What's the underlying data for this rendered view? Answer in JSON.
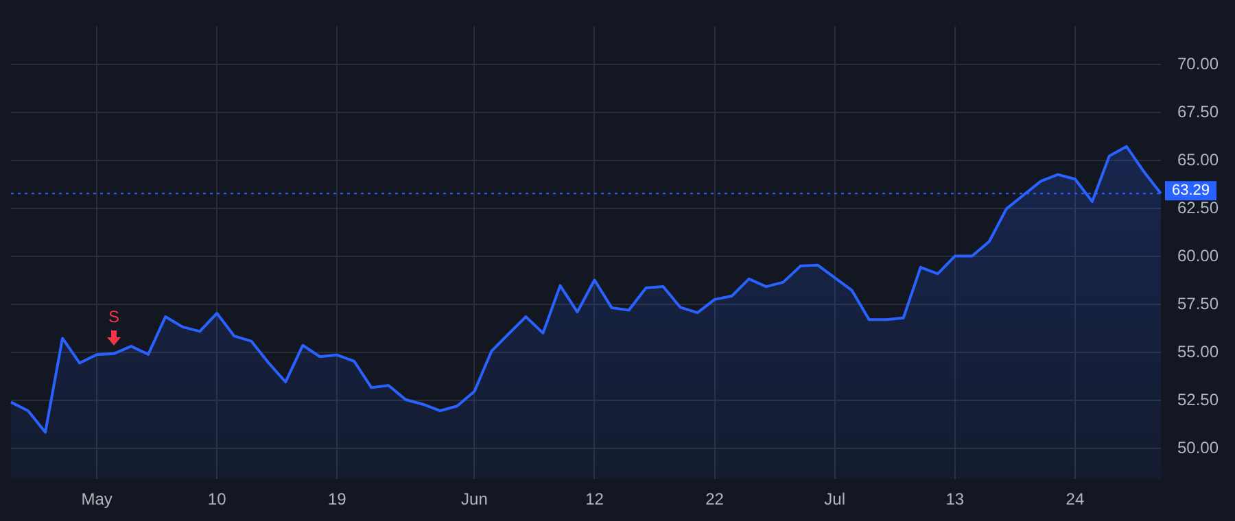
{
  "chart_data": {
    "type": "area",
    "categories": [
      null,
      null,
      null,
      null,
      null,
      "May",
      null,
      null,
      null,
      null,
      null,
      null,
      "10",
      null,
      null,
      null,
      null,
      null,
      null,
      "19",
      null,
      null,
      null,
      null,
      null,
      null,
      null,
      "Jun",
      null,
      null,
      null,
      null,
      null,
      null,
      "12",
      null,
      null,
      null,
      null,
      null,
      null,
      "22",
      null,
      null,
      null,
      null,
      null,
      null,
      "Jul",
      null,
      null,
      null,
      null,
      null,
      null,
      "13",
      null,
      null,
      null,
      null,
      null,
      null,
      "24",
      null,
      null,
      null,
      null,
      null
    ],
    "series": [
      {
        "color": "#2962ff",
        "values": [
          52.42,
          51.97,
          50.85,
          55.75,
          54.46,
          54.9,
          54.95,
          55.33,
          54.91,
          56.87,
          56.34,
          56.11,
          57.05,
          55.87,
          55.6,
          54.48,
          53.47,
          55.38,
          54.79,
          54.88,
          54.55,
          53.18,
          53.29,
          52.55,
          52.31,
          51.97,
          52.22,
          52.98,
          55.08,
          55.98,
          56.87,
          56.02,
          58.49,
          57.12,
          58.78,
          57.34,
          57.21,
          58.37,
          58.44,
          57.36,
          57.08,
          57.77,
          57.95,
          58.84,
          58.44,
          58.67,
          59.51,
          59.56,
          58.9,
          58.24,
          56.72,
          56.72,
          56.81,
          59.45,
          59.11,
          60.03,
          60.03,
          60.79,
          62.49,
          63.21,
          63.93,
          64.28,
          64.04,
          62.87,
          65.25,
          65.74,
          64.44,
          63.29
        ]
      }
    ],
    "ylim": [
      48.4,
      72.0
    ],
    "yticks": [
      {
        "value": 50,
        "label": "50.00"
      },
      {
        "value": 52.5,
        "label": "52.50"
      },
      {
        "value": 55,
        "label": "55.00"
      },
      {
        "value": 57.5,
        "label": "57.50"
      },
      {
        "value": 60,
        "label": "60.00"
      },
      {
        "value": 62.5,
        "label": "62.50"
      },
      {
        "value": 65,
        "label": "65.00"
      },
      {
        "value": 67.5,
        "label": "67.50"
      },
      {
        "value": 70,
        "label": "70.00"
      }
    ],
    "grid": true,
    "ref_lines": [
      {
        "axis": "y",
        "value": 63.29,
        "label": "63.29",
        "color": "#2962ff",
        "line_style": "dotted"
      }
    ],
    "annotations": [
      {
        "text": "S",
        "y": 54.95
      }
    ]
  }
}
